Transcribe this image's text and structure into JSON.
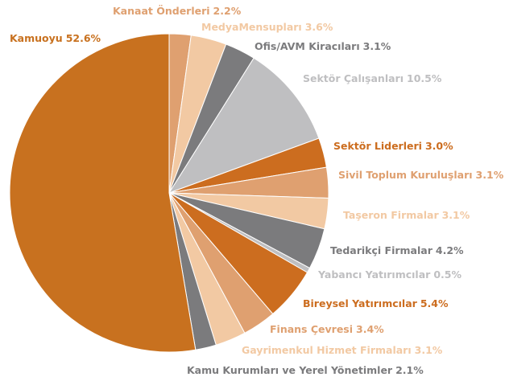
{
  "chart_data": {
    "type": "pie",
    "categories": [
      "Kanaat Önderleri",
      "MedyaMensupları",
      "Ofis/AVM Kiracıları",
      "Sektör Çalışanları",
      "Sektör Liderleri",
      "Sivil Toplum Kuruluşları",
      "Taşeron Firmalar",
      "Tedarikçi Firmalar",
      "Yabancı Yatırımcılar",
      "Bireysel Yatırımcılar",
      "Finans Çevresi",
      "Gayrimenkul Hizmet Firmaları",
      "Kamu Kurumları ve Yerel Yönetimler",
      "Kamuoyu"
    ],
    "values": [
      2.2,
      3.6,
      3.1,
      10.5,
      3.0,
      3.1,
      3.1,
      4.2,
      0.5,
      5.4,
      3.4,
      3.1,
      2.1,
      52.6
    ],
    "value_labels": [
      "2.2%",
      "3.6%",
      "3.1%",
      "10.5%",
      "3.0%",
      "3.1%",
      "3.1%",
      "4.2%",
      "0.5%",
      "5.4%",
      "3.4%",
      "3.1%",
      "2.1%",
      "52.6%"
    ],
    "colors": [
      "#dfa070",
      "#f2c9a3",
      "#7b7b7d",
      "#bfbfc1",
      "#cc6d1f",
      "#dfa070",
      "#f2c9a3",
      "#7b7b7d",
      "#bfbfc1",
      "#cc6d1f",
      "#dfa070",
      "#f2c9a3",
      "#7b7b7d",
      "#c8711f"
    ]
  }
}
